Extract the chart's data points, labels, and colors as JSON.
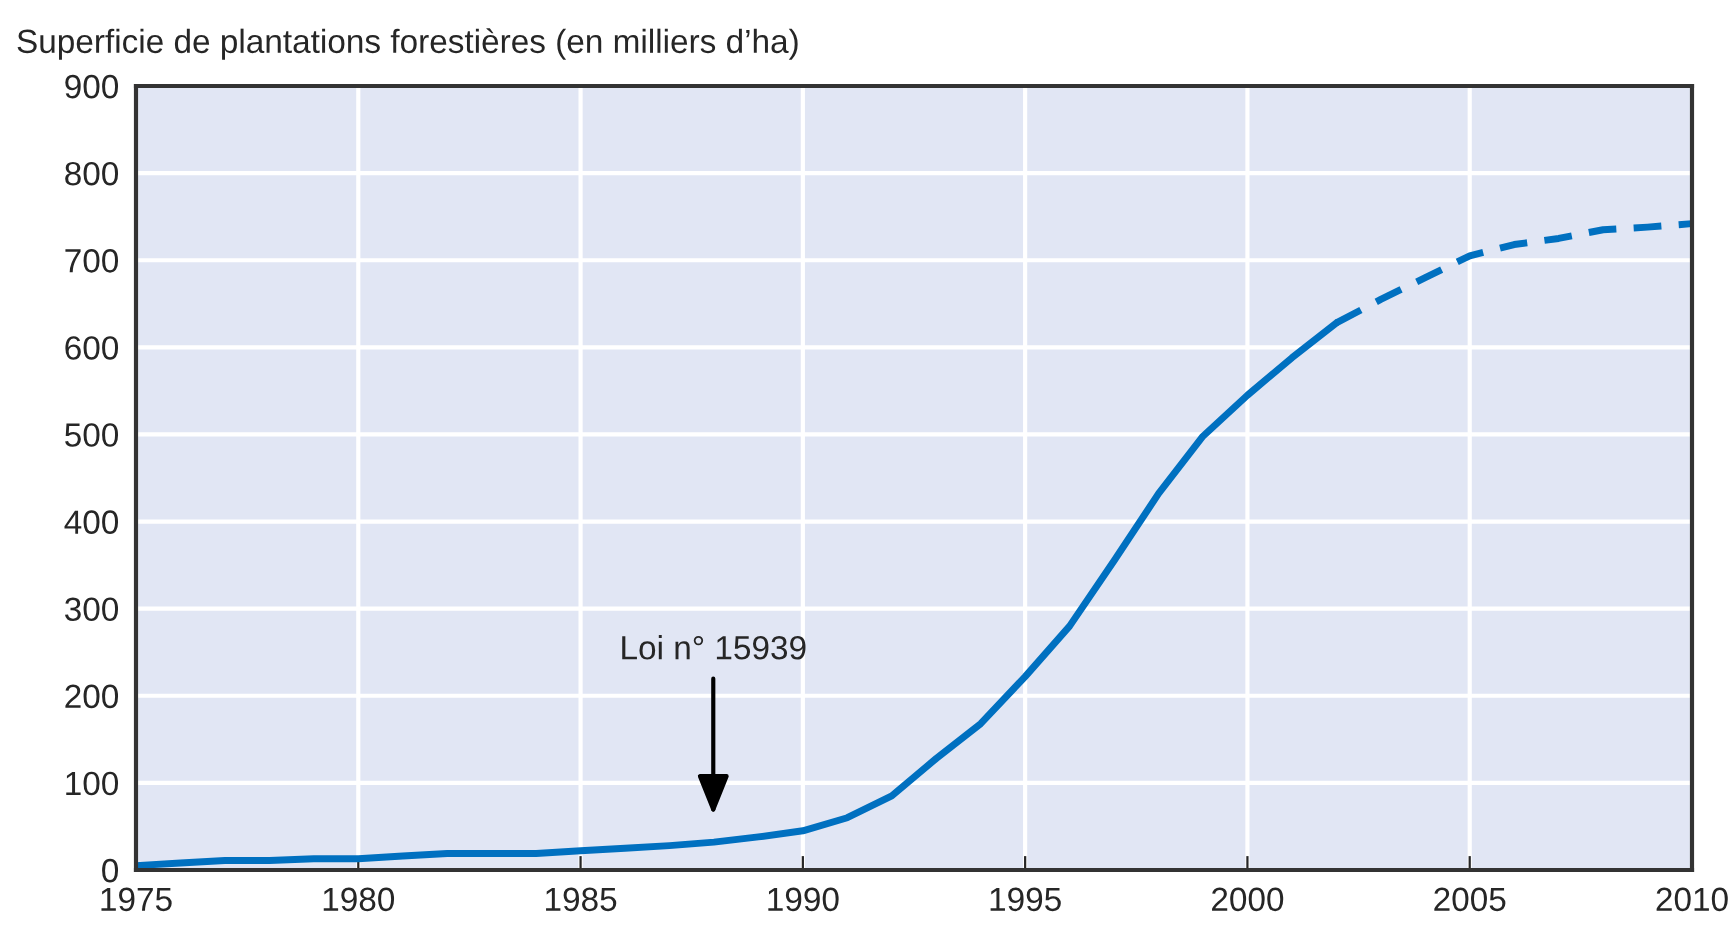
{
  "chart_data": {
    "type": "line",
    "ylabel": "Superficie de plantations forestières (en milliers d’ha)",
    "xlim": [
      1975,
      2010
    ],
    "xticks": [
      1975,
      1980,
      1985,
      1990,
      1995,
      2000,
      2005,
      2010
    ],
    "ylim": [
      0,
      900
    ],
    "yticks": [
      0,
      100,
      200,
      300,
      400,
      500,
      600,
      700,
      800,
      900
    ],
    "grid": true,
    "marker": "none",
    "series": [
      {
        "color": "#0070c0",
        "line_style": "solid",
        "x": [
          1975,
          1976,
          1977,
          1978,
          1979,
          1980,
          1981,
          1982,
          1983,
          1984,
          1985,
          1986,
          1987,
          1988,
          1989,
          1990,
          1991,
          1992,
          1993,
          1994,
          1995,
          1996,
          1997,
          1998,
          1999,
          2000,
          2001,
          2002
        ],
        "values": [
          5,
          8,
          11,
          11,
          13,
          13,
          16,
          19,
          19,
          19,
          22,
          25,
          28,
          32,
          38,
          45,
          60,
          85,
          128,
          168,
          222,
          280,
          355,
          432,
          498,
          545,
          588,
          628
        ]
      },
      {
        "color": "#0070c0",
        "line_style": "dashed",
        "x": [
          2002,
          2003,
          2004,
          2005,
          2006,
          2007,
          2008,
          2009,
          2010
        ],
        "values": [
          628,
          655,
          680,
          705,
          718,
          725,
          735,
          738,
          742
        ]
      }
    ],
    "annotations": [
      "Loi n° 15939"
    ]
  }
}
